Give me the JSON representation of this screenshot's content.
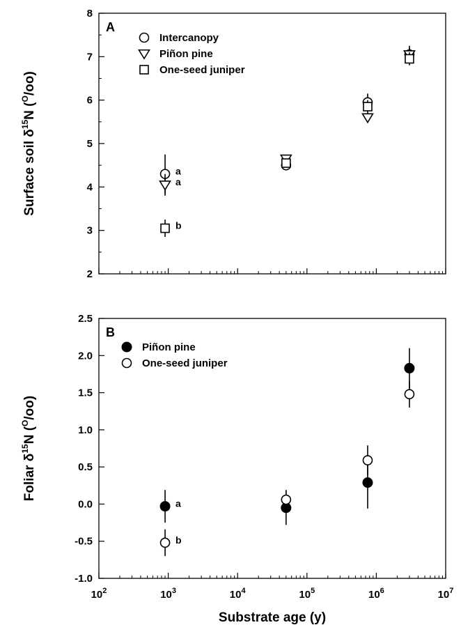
{
  "chart_data": [
    {
      "type": "scatter",
      "panel_label": "A",
      "ylabel": "Surface soil δ¹⁵N (⁰/oo)",
      "ylabel_parts": {
        "pre": "Surface soil δ",
        "sup": "15",
        "mid": "N (",
        "sup2": "O",
        "post": "/oo)"
      },
      "xscale": "log",
      "xlim": [
        100,
        10000000
      ],
      "ylim": [
        2,
        8
      ],
      "y_ticks": [
        2,
        3,
        4,
        5,
        6,
        7,
        8
      ],
      "y_tick_labels": [
        "2",
        "3",
        "4",
        "5",
        "6",
        "7",
        "8"
      ],
      "legend_placement": "top-left",
      "series": [
        {
          "name": "Intercanopy",
          "marker": "circle",
          "points": [
            {
              "x": 900,
              "y": 4.3,
              "yerr": 0.45,
              "label": "a"
            },
            {
              "x": 50000,
              "y": 4.5,
              "yerr": 0.07
            },
            {
              "x": 750000,
              "y": 5.95,
              "yerr": 0.2
            },
            {
              "x": 3000000,
              "y": 7.05,
              "yerr": 0.15
            }
          ]
        },
        {
          "name": "Piñon pine",
          "marker": "triangle-down",
          "points": [
            {
              "x": 900,
              "y": 4.05,
              "yerr": 0.25,
              "label": "a"
            },
            {
              "x": 50000,
              "y": 4.65,
              "yerr": 0.05
            },
            {
              "x": 750000,
              "y": 5.6,
              "yerr": 0.1
            },
            {
              "x": 3000000,
              "y": 7.05,
              "yerr": 0.2
            }
          ]
        },
        {
          "name": "One-seed juniper",
          "marker": "square",
          "points": [
            {
              "x": 900,
              "y": 3.05,
              "yerr": 0.2,
              "label": "b"
            },
            {
              "x": 50000,
              "y": 4.55,
              "yerr": 0.1
            },
            {
              "x": 750000,
              "y": 5.85,
              "yerr": 0.15
            },
            {
              "x": 3000000,
              "y": 6.95,
              "yerr": 0.15
            }
          ]
        }
      ]
    },
    {
      "type": "scatter",
      "panel_label": "B",
      "ylabel": "Foliar δ¹⁵N (⁰/oo)",
      "ylabel_parts": {
        "pre": "Foliar δ",
        "sup": "15",
        "mid": "N (",
        "sup2": "O",
        "post": "/oo)"
      },
      "xlabel": "Substrate age (y)",
      "xscale": "log",
      "xlim": [
        100,
        10000000
      ],
      "x_ticks": [
        100,
        1000,
        10000,
        100000,
        1000000,
        10000000
      ],
      "x_tick_labels": [
        {
          "base": "10",
          "exp": "2"
        },
        {
          "base": "10",
          "exp": "3"
        },
        {
          "base": "10",
          "exp": "4"
        },
        {
          "base": "10",
          "exp": "5"
        },
        {
          "base": "10",
          "exp": "6"
        },
        {
          "base": "10",
          "exp": "7"
        }
      ],
      "ylim": [
        -1.0,
        2.5
      ],
      "y_ticks": [
        -1.0,
        -0.5,
        0.0,
        0.5,
        1.0,
        1.5,
        2.0,
        2.5
      ],
      "y_tick_labels": [
        "-1.0",
        "-0.5",
        "0.0",
        "0.5",
        "1.0",
        "1.5",
        "2.0",
        "2.5"
      ],
      "legend_placement": "top-left",
      "series": [
        {
          "name": "Piñon pine",
          "marker": "filled-circle",
          "points": [
            {
              "x": 900,
              "y": -0.03,
              "yerr": 0.22,
              "label": "a"
            },
            {
              "x": 50000,
              "y": -0.05,
              "yerr": 0.23
            },
            {
              "x": 750000,
              "y": 0.29,
              "yerr": 0.35
            },
            {
              "x": 3000000,
              "y": 1.83,
              "yerr": 0.27
            }
          ]
        },
        {
          "name": "One-seed juniper",
          "marker": "open-circle",
          "points": [
            {
              "x": 900,
              "y": -0.52,
              "yerr": 0.18,
              "label": "b"
            },
            {
              "x": 50000,
              "y": 0.06,
              "yerr": 0.13
            },
            {
              "x": 750000,
              "y": 0.59,
              "yerr": 0.2
            },
            {
              "x": 3000000,
              "y": 1.48,
              "yerr": 0.18
            }
          ]
        }
      ]
    }
  ]
}
